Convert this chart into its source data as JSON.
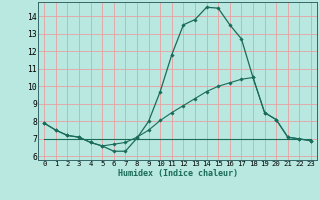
{
  "xlabel": "Humidex (Indice chaleur)",
  "bg_color": "#b8e8e0",
  "grid_color": "#e8a0a0",
  "line_color": "#1a6b5a",
  "xlim": [
    -0.5,
    23.5
  ],
  "ylim": [
    5.8,
    14.8
  ],
  "yticks": [
    6,
    7,
    8,
    9,
    10,
    11,
    12,
    13,
    14
  ],
  "xticks": [
    0,
    1,
    2,
    3,
    4,
    5,
    6,
    7,
    8,
    9,
    10,
    11,
    12,
    13,
    14,
    15,
    16,
    17,
    18,
    19,
    20,
    21,
    22,
    23
  ],
  "series_main": {
    "x": [
      0,
      1,
      2,
      3,
      4,
      5,
      6,
      7,
      8,
      9,
      10,
      11,
      12,
      13,
      14,
      15,
      16,
      17,
      18,
      19,
      20,
      21,
      22,
      23
    ],
    "y": [
      7.9,
      7.5,
      7.2,
      7.1,
      6.8,
      6.6,
      6.3,
      6.3,
      7.05,
      8.0,
      9.7,
      11.8,
      13.5,
      13.8,
      14.5,
      14.45,
      13.5,
      12.7,
      10.5,
      8.5,
      8.1,
      7.1,
      7.0,
      6.9
    ]
  },
  "series_flat_rise": {
    "x": [
      0,
      1,
      2,
      3,
      4,
      5,
      6,
      7,
      8,
      9,
      10,
      11,
      12,
      13,
      14,
      15,
      16,
      17,
      18,
      19,
      20,
      21,
      22,
      23
    ],
    "y": [
      7.9,
      7.5,
      7.2,
      7.1,
      6.8,
      6.6,
      6.7,
      6.8,
      7.1,
      7.5,
      8.05,
      8.5,
      8.9,
      9.3,
      9.7,
      10.0,
      10.2,
      10.4,
      10.5,
      8.5,
      8.1,
      7.1,
      7.0,
      6.9
    ]
  },
  "series_horizontal": {
    "x": [
      0,
      23
    ],
    "y": [
      7.0,
      7.0
    ]
  }
}
